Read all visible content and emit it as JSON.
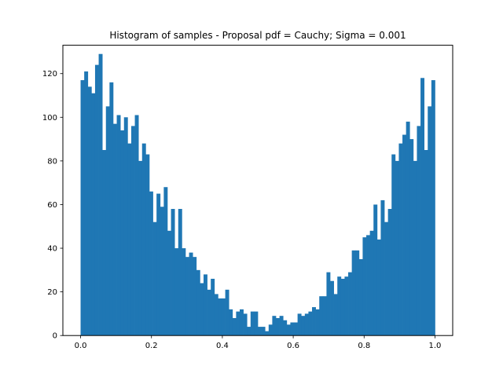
{
  "chart_data": {
    "type": "bar",
    "title": "Histogram of samples - Proposal pdf = Cauchy; Sigma = 0.001",
    "xlabel": "",
    "ylabel": "",
    "xlim": [
      -0.05,
      1.05
    ],
    "ylim": [
      0,
      133
    ],
    "bin_start": 0.0,
    "bin_end": 1.0,
    "xticks": [
      "0.0",
      "0.2",
      "0.4",
      "0.6",
      "0.8",
      "1.0"
    ],
    "xtick_values": [
      0.0,
      0.2,
      0.4,
      0.6,
      0.8,
      1.0
    ],
    "yticks": [
      "0",
      "20",
      "40",
      "60",
      "80",
      "100",
      "120"
    ],
    "ytick_values": [
      0,
      20,
      40,
      60,
      80,
      100,
      120
    ],
    "grid": false,
    "bar_color": "#1f77b4",
    "values": [
      117,
      121,
      114,
      111,
      124,
      129,
      85,
      105,
      116,
      97,
      101,
      94,
      100,
      88,
      96,
      101,
      80,
      88,
      83,
      66,
      52,
      65,
      59,
      68,
      48,
      58,
      40,
      58,
      40,
      36,
      38,
      36,
      30,
      24,
      28,
      21,
      26,
      19,
      17,
      17,
      21,
      12,
      8,
      11,
      12,
      10,
      4,
      11,
      11,
      4,
      4,
      2,
      5,
      9,
      8,
      9,
      7,
      5,
      6,
      6,
      10,
      9,
      10,
      11,
      13,
      12,
      18,
      18,
      29,
      25,
      19,
      27,
      26,
      27,
      29,
      39,
      39,
      35,
      45,
      46,
      48,
      60,
      44,
      62,
      52,
      58,
      83,
      80,
      88,
      92,
      98,
      90,
      80,
      96,
      118,
      85,
      105,
      117
    ]
  }
}
